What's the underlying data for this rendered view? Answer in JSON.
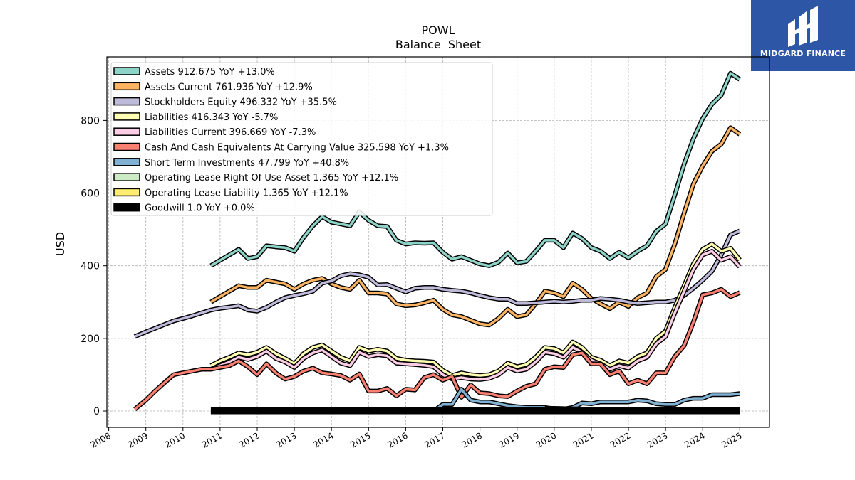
{
  "brand": {
    "name": "MIDGARD FINANCE",
    "bg_color": "#2e56a6"
  },
  "chart_data": {
    "type": "line",
    "title": "POWL",
    "subtitle": "Balance  Sheet",
    "xlabel": "",
    "ylabel": "USD",
    "xlim": [
      2007.95,
      2025.8
    ],
    "ylim": [
      -45,
      975
    ],
    "xticks": [
      2008,
      2009,
      2010,
      2011,
      2012,
      2013,
      2014,
      2015,
      2016,
      2017,
      2018,
      2019,
      2020,
      2021,
      2022,
      2023,
      2024,
      2025
    ],
    "yticks": [
      0,
      200,
      400,
      600,
      800
    ],
    "grid": true,
    "legend_position": "top-left",
    "series": [
      {
        "name": "Assets",
        "legend": "Assets  912.675 YoY +13.0%",
        "color": "#8dd3c7",
        "x": [
          2010.75,
          2011.0,
          2011.25,
          2011.5,
          2011.75,
          2012.0,
          2012.25,
          2012.5,
          2012.75,
          2013.0,
          2013.25,
          2013.5,
          2013.75,
          2014.0,
          2014.25,
          2014.5,
          2014.75,
          2015.0,
          2015.25,
          2015.5,
          2015.75,
          2016.0,
          2016.25,
          2016.5,
          2016.75,
          2017.0,
          2017.25,
          2017.5,
          2017.75,
          2018.0,
          2018.25,
          2018.5,
          2018.75,
          2019.0,
          2019.25,
          2019.5,
          2019.75,
          2020.0,
          2020.25,
          2020.5,
          2020.75,
          2021.0,
          2021.25,
          2021.5,
          2021.75,
          2022.0,
          2022.25,
          2022.5,
          2022.75,
          2023.0,
          2023.25,
          2023.5,
          2023.75,
          2024.0,
          2024.25,
          2024.5,
          2024.75,
          2025.0
        ],
        "y": [
          400,
          415,
          430,
          445,
          420,
          425,
          455,
          452,
          450,
          440,
          478,
          510,
          535,
          520,
          515,
          510,
          548,
          525,
          510,
          508,
          470,
          460,
          463,
          462,
          463,
          437,
          418,
          425,
          415,
          405,
          400,
          410,
          435,
          408,
          412,
          440,
          470,
          470,
          450,
          490,
          475,
          450,
          440,
          420,
          437,
          422,
          440,
          455,
          495,
          515,
          595,
          680,
          750,
          805,
          845,
          870,
          930,
          913
        ]
      },
      {
        "name": "Assets Current",
        "legend": "Assets Current  761.936 YoY +12.9%",
        "color": "#fdb462",
        "x": [
          2010.75,
          2011.0,
          2011.25,
          2011.5,
          2011.75,
          2012.0,
          2012.25,
          2012.5,
          2012.75,
          2013.0,
          2013.25,
          2013.5,
          2013.75,
          2014.0,
          2014.25,
          2014.5,
          2014.75,
          2015.0,
          2015.25,
          2015.5,
          2015.75,
          2016.0,
          2016.25,
          2016.5,
          2016.75,
          2017.0,
          2017.25,
          2017.5,
          2017.75,
          2018.0,
          2018.25,
          2018.5,
          2018.75,
          2019.0,
          2019.25,
          2019.5,
          2019.75,
          2020.0,
          2020.25,
          2020.5,
          2020.75,
          2021.0,
          2021.25,
          2021.5,
          2021.75,
          2022.0,
          2022.25,
          2022.5,
          2022.75,
          2023.0,
          2023.25,
          2023.5,
          2023.75,
          2024.0,
          2024.25,
          2024.5,
          2024.75,
          2025.0
        ],
        "y": [
          300,
          315,
          330,
          345,
          340,
          340,
          360,
          355,
          350,
          335,
          350,
          360,
          365,
          350,
          340,
          335,
          360,
          325,
          325,
          322,
          295,
          290,
          292,
          298,
          305,
          280,
          265,
          260,
          250,
          240,
          237,
          255,
          280,
          260,
          265,
          295,
          330,
          325,
          315,
          352,
          335,
          310,
          295,
          282,
          300,
          288,
          312,
          325,
          370,
          390,
          460,
          545,
          625,
          675,
          715,
          735,
          780,
          762
        ]
      },
      {
        "name": "Stockholders Equity",
        "legend": "Stockholders Equity  496.332 YoY +35.5%",
        "color": "#bebada",
        "x": [
          2008.7,
          2009.0,
          2009.25,
          2009.5,
          2009.75,
          2010.0,
          2010.25,
          2010.5,
          2010.75,
          2011.0,
          2011.25,
          2011.5,
          2011.75,
          2012.0,
          2012.25,
          2012.5,
          2012.75,
          2013.0,
          2013.25,
          2013.5,
          2013.75,
          2014.0,
          2014.25,
          2014.5,
          2014.75,
          2015.0,
          2015.25,
          2015.5,
          2015.75,
          2016.0,
          2016.25,
          2016.5,
          2016.75,
          2017.0,
          2017.25,
          2017.5,
          2017.75,
          2018.0,
          2018.25,
          2018.5,
          2018.75,
          2019.0,
          2019.25,
          2019.5,
          2019.75,
          2020.0,
          2020.25,
          2020.5,
          2020.75,
          2021.0,
          2021.25,
          2021.5,
          2021.75,
          2022.0,
          2022.25,
          2022.5,
          2022.75,
          2023.0,
          2023.25,
          2023.5,
          2023.75,
          2024.0,
          2024.25,
          2024.5,
          2024.75,
          2025.0
        ],
        "y": [
          205,
          218,
          228,
          238,
          248,
          255,
          262,
          270,
          278,
          283,
          286,
          290,
          278,
          275,
          285,
          300,
          312,
          318,
          323,
          330,
          352,
          358,
          372,
          378,
          375,
          368,
          347,
          348,
          338,
          328,
          338,
          340,
          340,
          335,
          332,
          330,
          325,
          318,
          312,
          308,
          308,
          296,
          296,
          298,
          300,
          302,
          300,
          302,
          305,
          305,
          310,
          308,
          305,
          300,
          296,
          298,
          300,
          300,
          305,
          318,
          338,
          360,
          385,
          430,
          485,
          496
        ]
      },
      {
        "name": "Liabilities",
        "legend": "Liabilities  416.343 YoY -5.7%",
        "color": "#ffffb3",
        "x": [
          2010.75,
          2011.0,
          2011.25,
          2011.5,
          2011.75,
          2012.0,
          2012.25,
          2012.5,
          2012.75,
          2013.0,
          2013.25,
          2013.5,
          2013.75,
          2014.0,
          2014.25,
          2014.5,
          2014.75,
          2015.0,
          2015.25,
          2015.5,
          2015.75,
          2016.0,
          2016.25,
          2016.5,
          2016.75,
          2017.0,
          2017.25,
          2017.5,
          2017.75,
          2018.0,
          2018.25,
          2018.5,
          2018.75,
          2019.0,
          2019.25,
          2019.5,
          2019.75,
          2020.0,
          2020.25,
          2020.5,
          2020.75,
          2021.0,
          2021.25,
          2021.5,
          2021.75,
          2022.0,
          2022.25,
          2022.5,
          2022.75,
          2023.0,
          2023.25,
          2023.5,
          2023.75,
          2024.0,
          2024.25,
          2024.5,
          2024.75,
          2025.0
        ],
        "y": [
          125,
          138,
          148,
          160,
          155,
          162,
          175,
          158,
          145,
          130,
          158,
          175,
          182,
          165,
          148,
          138,
          175,
          165,
          170,
          165,
          145,
          140,
          138,
          137,
          135,
          112,
          98,
          105,
          100,
          98,
          100,
          110,
          132,
          122,
          128,
          148,
          175,
          172,
          160,
          190,
          175,
          148,
          140,
          125,
          138,
          132,
          150,
          160,
          200,
          220,
          285,
          345,
          405,
          445,
          460,
          440,
          448,
          416
        ]
      },
      {
        "name": "Liabilities Current",
        "legend": "Liabilities Current  396.669 YoY -7.3%",
        "color": "#fccde5",
        "x": [
          2010.75,
          2011.0,
          2011.25,
          2011.5,
          2011.75,
          2012.0,
          2012.25,
          2012.5,
          2012.75,
          2013.0,
          2013.25,
          2013.5,
          2013.75,
          2014.0,
          2014.25,
          2014.5,
          2014.75,
          2015.0,
          2015.25,
          2015.5,
          2015.75,
          2016.0,
          2016.25,
          2016.5,
          2016.75,
          2017.0,
          2017.25,
          2017.5,
          2017.75,
          2018.0,
          2018.25,
          2018.5,
          2018.75,
          2019.0,
          2019.25,
          2019.5,
          2019.75,
          2020.0,
          2020.25,
          2020.5,
          2020.75,
          2021.0,
          2021.25,
          2021.5,
          2021.75,
          2022.0,
          2022.25,
          2022.5,
          2022.75,
          2023.0,
          2023.25,
          2023.5,
          2023.75,
          2024.0,
          2024.25,
          2024.5,
          2024.75,
          2025.0
        ],
        "y": [
          115,
          125,
          135,
          148,
          142,
          150,
          165,
          145,
          135,
          120,
          145,
          160,
          168,
          150,
          132,
          125,
          162,
          150,
          155,
          152,
          132,
          130,
          128,
          126,
          122,
          100,
          88,
          92,
          88,
          87,
          90,
          100,
          120,
          110,
          115,
          135,
          162,
          158,
          148,
          175,
          162,
          140,
          130,
          115,
          125,
          118,
          138,
          148,
          185,
          205,
          270,
          330,
          390,
          430,
          440,
          415,
          425,
          397
        ]
      },
      {
        "name": "Cash And Cash Equivalents At Carrying Value",
        "legend": "Cash And Cash Equivalents At Carrying Value  325.598 YoY +1.3%",
        "color": "#fb8072",
        "x": [
          2008.7,
          2009.0,
          2009.25,
          2009.5,
          2009.75,
          2010.0,
          2010.25,
          2010.5,
          2010.75,
          2011.0,
          2011.25,
          2011.5,
          2011.75,
          2012.0,
          2012.25,
          2012.5,
          2012.75,
          2013.0,
          2013.25,
          2013.5,
          2013.75,
          2014.0,
          2014.25,
          2014.5,
          2014.75,
          2015.0,
          2015.25,
          2015.5,
          2015.75,
          2016.0,
          2016.25,
          2016.5,
          2016.75,
          2017.0,
          2017.25,
          2017.5,
          2017.75,
          2018.0,
          2018.25,
          2018.5,
          2018.75,
          2019.0,
          2019.25,
          2019.5,
          2019.75,
          2020.0,
          2020.25,
          2020.5,
          2020.75,
          2021.0,
          2021.25,
          2021.5,
          2021.75,
          2022.0,
          2022.25,
          2022.5,
          2022.75,
          2023.0,
          2023.25,
          2023.5,
          2023.75,
          2024.0,
          2024.25,
          2024.5,
          2024.75,
          2025.0
        ],
        "y": [
          5,
          30,
          55,
          78,
          100,
          105,
          110,
          115,
          115,
          120,
          125,
          138,
          122,
          100,
          130,
          105,
          88,
          95,
          110,
          118,
          105,
          102,
          98,
          85,
          102,
          55,
          55,
          62,
          42,
          60,
          58,
          92,
          100,
          85,
          95,
          38,
          72,
          50,
          48,
          42,
          40,
          55,
          68,
          75,
          115,
          122,
          120,
          155,
          160,
          130,
          130,
          100,
          110,
          75,
          85,
          75,
          105,
          105,
          150,
          180,
          245,
          320,
          325,
          335,
          315,
          326
        ]
      },
      {
        "name": "Short Term Investments",
        "legend": "Short Term Investments  47.799 YoY +40.8%",
        "color": "#80b1d3",
        "x": [
          2016.75,
          2017.0,
          2017.25,
          2017.5,
          2017.75,
          2018.0,
          2018.25,
          2018.5,
          2018.75,
          2019.0,
          2019.25,
          2019.5,
          2019.75,
          2020.0,
          2020.25,
          2020.5,
          2020.75,
          2021.0,
          2021.25,
          2021.5,
          2021.75,
          2022.0,
          2022.25,
          2022.5,
          2022.75,
          2023.0,
          2023.25,
          2023.5,
          2023.75,
          2024.0,
          2024.25,
          2024.5,
          2024.75,
          2025.0
        ],
        "y": [
          0,
          18,
          18,
          60,
          30,
          25,
          25,
          20,
          15,
          12,
          10,
          10,
          10,
          5,
          5,
          10,
          22,
          20,
          25,
          25,
          25,
          25,
          30,
          28,
          20,
          18,
          18,
          30,
          35,
          35,
          45,
          45,
          45,
          48
        ]
      },
      {
        "name": "Operating Lease Right Of Use Asset",
        "legend": "Operating Lease Right Of Use Asset  1.365 YoY +12.1%",
        "color": "#ccebc5",
        "x": [
          2019.75,
          2020.0,
          2020.5,
          2021.0,
          2021.5,
          2022.0,
          2022.5,
          2023.0,
          2023.5,
          2024.0,
          2024.5,
          2025.0
        ],
        "y": [
          8,
          7,
          6,
          5,
          4,
          3,
          2,
          1.5,
          1.2,
          1.2,
          1.3,
          1.365
        ]
      },
      {
        "name": "Operating Lease Liability",
        "legend": "Operating Lease Liability  1.365 YoY +12.1%",
        "color": "#ffed6f",
        "x": [
          2019.75,
          2020.0,
          2020.5,
          2021.0,
          2021.5,
          2022.0,
          2022.5,
          2023.0,
          2023.5,
          2024.0,
          2024.5,
          2025.0
        ],
        "y": [
          8,
          7,
          6,
          5,
          4,
          3,
          2,
          1.5,
          1.2,
          1.2,
          1.3,
          1.365
        ]
      },
      {
        "name": "Goodwill",
        "legend": "Goodwill  1.0 YoY +0.0%",
        "color": "#000000",
        "x": [
          2010.75,
          2025.0
        ],
        "y": [
          1.0,
          1.0
        ]
      }
    ]
  }
}
